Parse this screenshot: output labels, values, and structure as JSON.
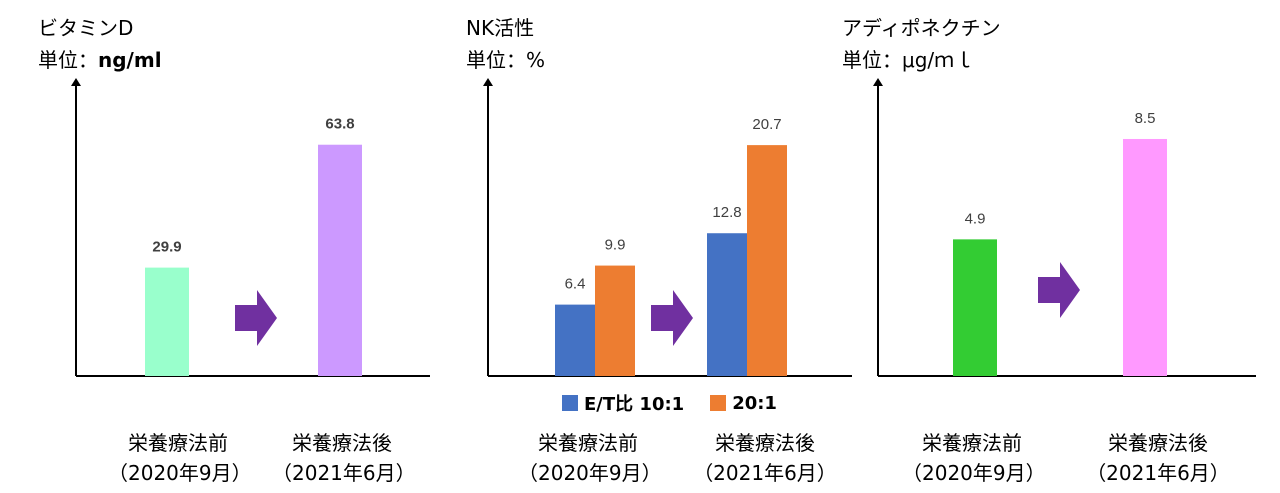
{
  "colors": {
    "vitd_before": "#99ffcc",
    "vitd_after": "#cc99ff",
    "nk_et10": "#4472c4",
    "nk_et20": "#ed7d31",
    "adipo_before": "#33cc33",
    "adipo_after": "#ff99ff",
    "arrow": "#7030a0"
  },
  "icons": [
    "up-arrow-axis-icon",
    "right-arrow-icon"
  ],
  "chart_data": [
    {
      "type": "bar",
      "title": "ビタミンD",
      "unit_label": "単位：",
      "unit_value": "ng/ml",
      "categories": [
        {
          "line1": "栄養療法前",
          "line2": "（2020年9月）"
        },
        {
          "line1": "栄養療法後",
          "line2": "（2021年6月）"
        }
      ],
      "values": [
        29.9,
        63.8
      ],
      "value_labels": [
        "29.9",
        "63.8"
      ],
      "ylim": [
        0,
        80
      ],
      "grid": false
    },
    {
      "type": "bar",
      "title": "NK活性",
      "unit_label": "単位：%",
      "categories": [
        {
          "line1": "栄養療法前",
          "line2": "（2020年9月）"
        },
        {
          "line1": "栄養療法後",
          "line2": "（2021年6月）"
        }
      ],
      "series": [
        {
          "name": "E/T比 10:1",
          "values": [
            6.4,
            12.8
          ],
          "value_labels": [
            "6.4",
            "12.8"
          ]
        },
        {
          "name": "20:1",
          "values": [
            9.9,
            20.7
          ],
          "value_labels": [
            "9.9",
            "20.7"
          ]
        }
      ],
      "legend": "bottom",
      "ylim": [
        0,
        26
      ],
      "grid": false
    },
    {
      "type": "bar",
      "title": "アディポネクチン",
      "unit_label": "単位：μg/ｍｌ",
      "categories": [
        {
          "line1": "栄養療法前",
          "line2": "（2020年9月）"
        },
        {
          "line1": "栄養療法後",
          "line2": "（2021年6月）"
        }
      ],
      "values": [
        4.9,
        8.5
      ],
      "value_labels": [
        "4.9",
        "8.5"
      ],
      "ylim": [
        0,
        10.4
      ],
      "grid": false
    }
  ]
}
